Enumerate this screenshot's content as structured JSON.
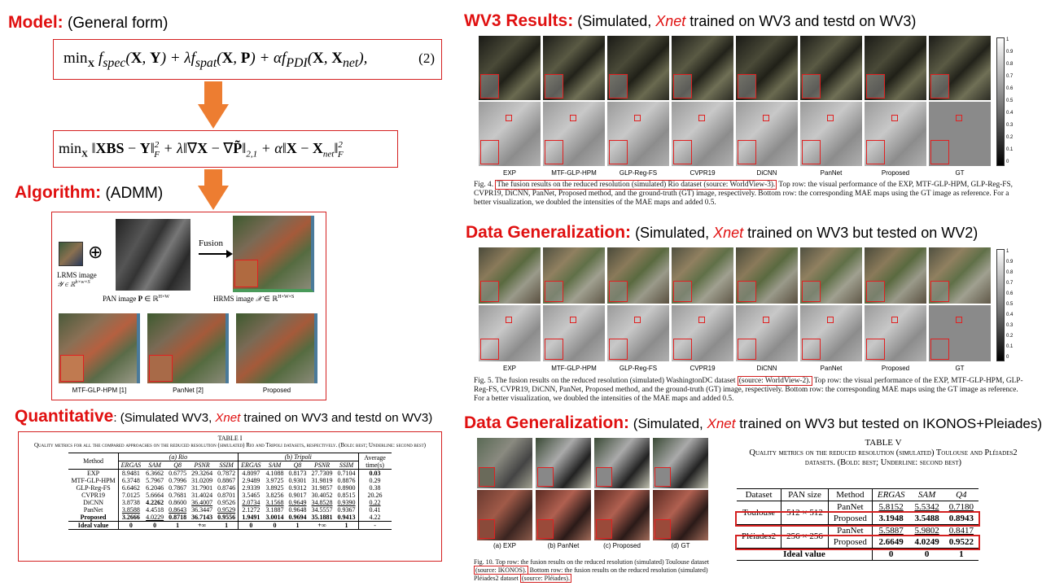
{
  "model": {
    "title": "Model:",
    "subtitle": "(General form)",
    "eq_number": "(2)"
  },
  "algorithm": {
    "title": "Algorithm:",
    "subtitle": "(ADMM)",
    "fusion_label": "Fusion",
    "lrms_label": "LRMS image",
    "pan_label": "PAN image",
    "hrms_label": "HRMS image",
    "method_labels": [
      "MTF-GLP-HPM [1]",
      "PanNet [2]",
      "Proposed"
    ]
  },
  "quantitative": {
    "title": "Quantitative",
    "prefix": ": (Simulated WV3, ",
    "net": "Xnet",
    "suffix": " trained on WV3 and testd on WV3)"
  },
  "wv3": {
    "title": "WV3 Results:",
    "prefix": " (Simulated, ",
    "net": "Xnet",
    "suffix": " trained on WV3 and testd on WV3)"
  },
  "gen1": {
    "title": "Data Generalization:",
    "prefix": " (Simulated, ",
    "net": "Xnet",
    "suffix": " trained on WV3 but tested on WV2)"
  },
  "gen2": {
    "title": "Data Generalization:",
    "prefix": " (Simulated, ",
    "net": "Xnet",
    "suffix": " trained on WV3 but tested on IKONOS+Pleiades)"
  },
  "fig_methods": [
    "EXP",
    "MTF-GLP-HPM",
    "GLP-Reg-FS",
    "CVPR19",
    "DiCNN",
    "PanNet",
    "Proposed",
    "GT"
  ],
  "colorbar_ticks": [
    "1",
    "0.9",
    "0.8",
    "0.7",
    "0.6",
    "0.5",
    "0.4",
    "0.3",
    "0.2",
    "0.1",
    "0"
  ],
  "fig4": {
    "pre": "Fig. 4. ",
    "hl": "The fusion results on the reduced resolution (simulated) Rio dataset (source: WorldView-3).",
    "post": " Top row: the visual performance of the EXP, MTF-GLP-HPM, GLP-Reg-FS, CVPR19, DiCNN, PanNet, Proposed method, and the ground-truth (GT) image, respectively. Bottom row: the corresponding MAE maps using the GT image as reference. For a better visualization, we doubled the intensities of the MAE maps and added 0.5."
  },
  "fig5": {
    "pre": "Fig. 5.  The fusion results on the reduced resolution (simulated) WashingtonDC dataset ",
    "hl": "(source: WorldView-2).",
    "post": " Top row: the visual performance of the EXP, MTF-GLP-HPM, GLP-Reg-FS, CVPR19, DiCNN, PanNet, Proposed method, and the ground-truth (GT) image, respectively. Bottom row: the corresponding MAE maps using the GT image as reference. For a better visualization, we doubled the intensities of the MAE maps and added 0.5."
  },
  "fig10": {
    "labels": [
      "(a) EXP",
      "(b) PanNet",
      "(c) Proposed",
      "(d) GT"
    ],
    "pre": "Fig. 10.  Top row: the fusion results on the reduced resolution (simulated) Toulouse dataset ",
    "hl1": "(source: IKONOS).",
    "mid": " Bottom row: the fusion results on the reduced resolution (simulated) Pléiades2 dataset ",
    "hl2": "(source: Pléiades)."
  },
  "table1": {
    "title": "TABLE I",
    "caption": "Quality metrics for all the compared approaches on the reduced resolution (simulated) Rio and Tripoli datasets, respectively. (Bold: best; Underline: second best)",
    "group_rio": "(a) Rio",
    "group_tripoli": "(b) Tripoli",
    "col_method": "Method",
    "col_time": "Average time(s)",
    "metrics": [
      "ERGAS",
      "SAM",
      "Q8",
      "PSNR",
      "SSIM",
      "ERGAS",
      "SAM",
      "Q8",
      "PSNR",
      "SSIM"
    ],
    "rows": [
      {
        "m": "EXP",
        "v": [
          "8.9481",
          "6.3662",
          "0.6775",
          "29.3264",
          "0.7872",
          "4.8097",
          "4.1088",
          "0.8173",
          "27.7309",
          "0.7104"
        ],
        "t": "0.03"
      },
      {
        "m": "MTF-GLP-HPM",
        "v": [
          "6.3748",
          "5.7967",
          "0.7996",
          "31.0209",
          "0.8867",
          "2.9489",
          "3.9725",
          "0.9301",
          "31.9819",
          "0.8876"
        ],
        "t": "0.29"
      },
      {
        "m": "GLP-Reg-FS",
        "v": [
          "6.6462",
          "6.2046",
          "0.7867",
          "31.7901",
          "0.8746",
          "2.9339",
          "3.8925",
          "0.9312",
          "31.9857",
          "0.8900"
        ],
        "t": "0.38"
      },
      {
        "m": "CVPR19",
        "v": [
          "7.0125",
          "5.6664",
          "0.7681",
          "31.4024",
          "0.8701",
          "3.5465",
          "3.8256",
          "0.9017",
          "30.4052",
          "0.8515"
        ],
        "t": "20.26"
      },
      {
        "m": "DiCNN",
        "v": [
          "3.8738",
          "4.2262",
          "0.8600",
          "36.4007",
          "0.9526",
          "2.0734",
          "3.1568",
          "0.9649",
          "34.8528",
          "0.9390"
        ],
        "t": "0.22"
      },
      {
        "m": "PanNet",
        "v": [
          "3.8588",
          "4.4518",
          "0.8643",
          "36.3447",
          "0.9529",
          "2.1272",
          "3.1887",
          "0.9648",
          "34.5557",
          "0.9367"
        ],
        "t": "0.41"
      },
      {
        "m": "Proposed",
        "v": [
          "3.2666",
          "4.0229",
          "0.8718",
          "36.7143",
          "0.9556",
          "1.9491",
          "3.0014",
          "0.9694",
          "35.1881",
          "0.9413"
        ],
        "t": "4.22"
      }
    ],
    "ideal": {
      "m": "Ideal value",
      "v": [
        "0",
        "0",
        "1",
        "+∞",
        "1",
        "0",
        "0",
        "1",
        "+∞",
        "1"
      ],
      "t": "-"
    }
  },
  "table5": {
    "title": "TABLE V",
    "caption": "Quality metrics on the reduced resolution (simulated) Toulouse and Pléiades2 datasets. (Bold: best; Underline: second best)",
    "headers": [
      "Dataset",
      "PAN size",
      "Method",
      "ERGAS",
      "SAM",
      "Q4"
    ],
    "rows": [
      {
        "dataset": "Toulouse",
        "pan": "512 × 512",
        "method": "PanNet",
        "v": [
          "5.8152",
          "5.5342",
          "0.7180"
        ]
      },
      {
        "dataset": "",
        "pan": "",
        "method": "Proposed",
        "v": [
          "3.1948",
          "3.5488",
          "0.8943"
        ]
      },
      {
        "dataset": "Pléiades2",
        "pan": "256 × 256",
        "method": "PanNet",
        "v": [
          "5.5887",
          "5.9802",
          "0.8417"
        ]
      },
      {
        "dataset": "",
        "pan": "",
        "method": "Proposed",
        "v": [
          "2.6649",
          "4.0249",
          "0.9522"
        ]
      }
    ],
    "ideal": {
      "label": "Ideal value",
      "v": [
        "0",
        "0",
        "1"
      ]
    }
  }
}
